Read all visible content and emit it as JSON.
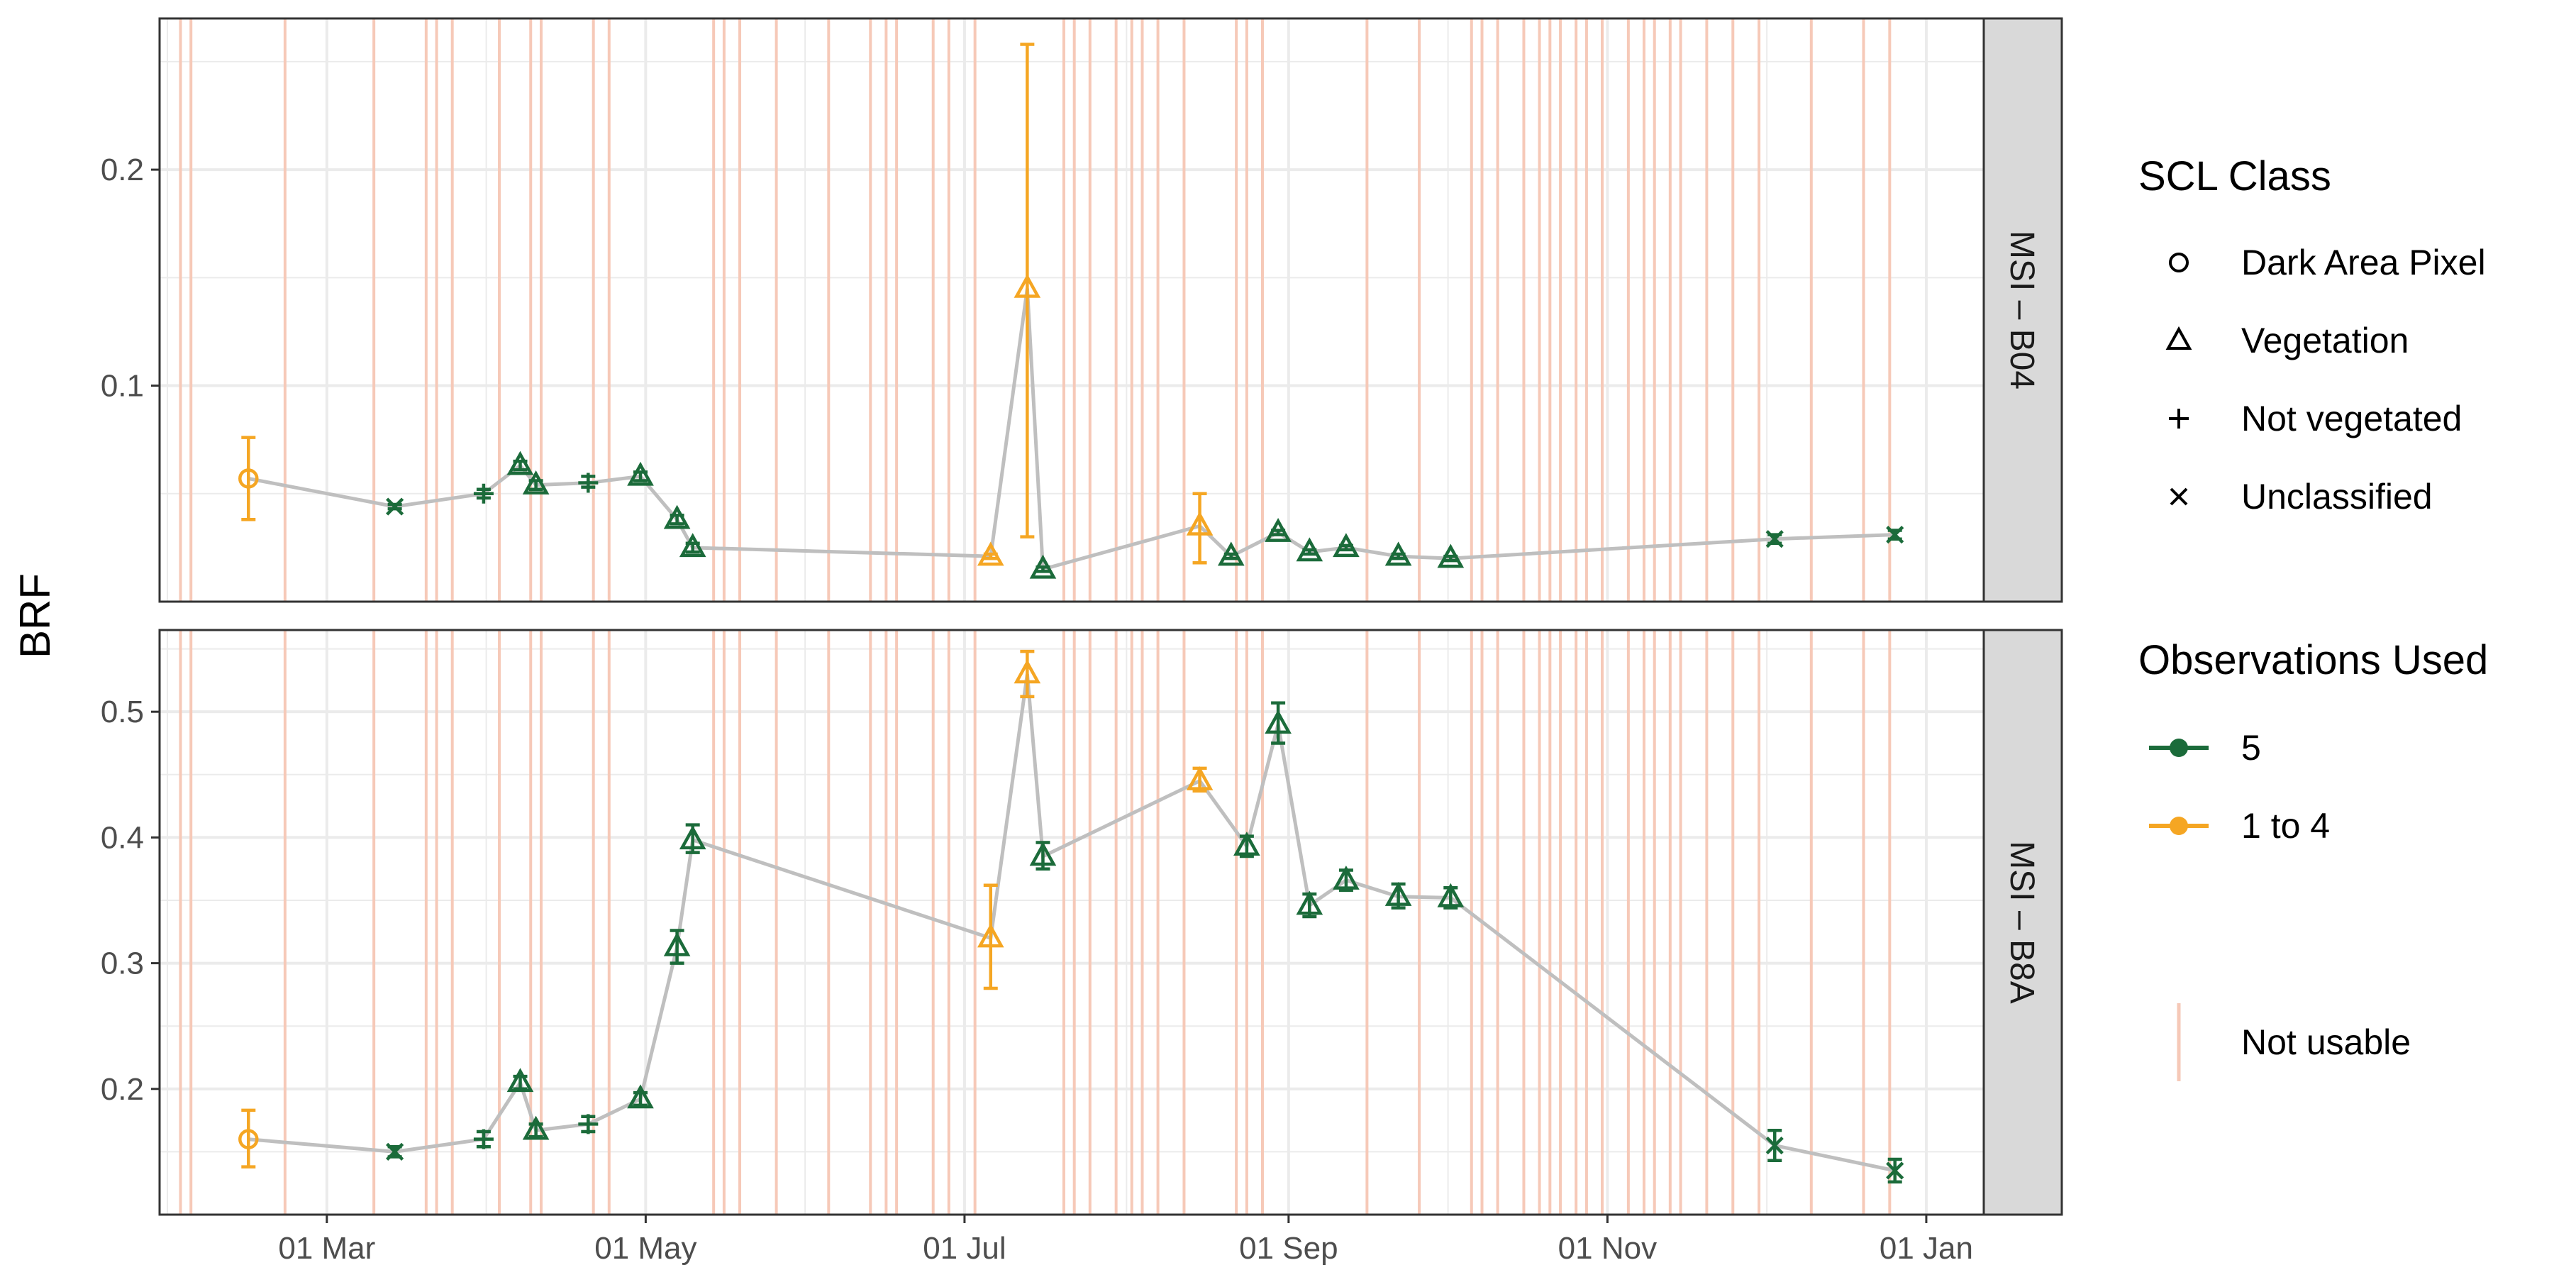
{
  "chart_data": {
    "type": "line",
    "ylabel": "BRF",
    "xlabel": "",
    "x_axis": {
      "type": "date",
      "range": [
        "2021-01-28",
        "2022-01-12"
      ],
      "ticks": [
        {
          "date": "2021-03-01",
          "label": "01 Mar"
        },
        {
          "date": "2021-05-01",
          "label": "01 May"
        },
        {
          "date": "2021-07-01",
          "label": "01 Jul"
        },
        {
          "date": "2021-09-01",
          "label": "01 Sep"
        },
        {
          "date": "2021-11-01",
          "label": "01 Nov"
        },
        {
          "date": "2022-01-01",
          "label": "01 Jan"
        }
      ]
    },
    "not_usable_dates": [
      "2021-02-01",
      "2021-02-03",
      "2021-02-21",
      "2021-03-10",
      "2021-03-20",
      "2021-03-22",
      "2021-03-25",
      "2021-04-03",
      "2021-04-09",
      "2021-04-11",
      "2021-04-21",
      "2021-04-24",
      "2021-05-14",
      "2021-05-16",
      "2021-05-19",
      "2021-05-26",
      "2021-06-05",
      "2021-06-13",
      "2021-06-16",
      "2021-06-18",
      "2021-06-25",
      "2021-06-28",
      "2021-07-03",
      "2021-07-20",
      "2021-07-22",
      "2021-07-25",
      "2021-07-30",
      "2021-08-02",
      "2021-08-04",
      "2021-08-07",
      "2021-08-12",
      "2021-08-22",
      "2021-08-24",
      "2021-08-27",
      "2021-09-16",
      "2021-09-26",
      "2021-10-06",
      "2021-10-08",
      "2021-10-11",
      "2021-10-16",
      "2021-10-19",
      "2021-10-21",
      "2021-10-23",
      "2021-10-26",
      "2021-10-28",
      "2021-10-31",
      "2021-11-05",
      "2021-11-08",
      "2021-11-10",
      "2021-11-13",
      "2021-11-15",
      "2021-11-20",
      "2021-11-25",
      "2021-11-30",
      "2021-12-10",
      "2021-12-20",
      "2021-12-25"
    ],
    "panels": [
      {
        "strip": "MSI – B04",
        "ylim": [
          0.0,
          0.27
        ],
        "yticks": [
          0.1,
          0.2
        ],
        "ytick_labels": [
          "0.1",
          "0.2"
        ],
        "points": [
          {
            "date": "2021-02-14",
            "value": 0.057,
            "low": 0.038,
            "high": 0.076,
            "scl": "dark",
            "obs": "1to4"
          },
          {
            "date": "2021-03-14",
            "value": 0.044,
            "low": 0.043,
            "high": 0.045,
            "scl": "unclassified",
            "obs": "5"
          },
          {
            "date": "2021-03-31",
            "value": 0.05,
            "low": 0.048,
            "high": 0.052,
            "scl": "notveg",
            "obs": "5"
          },
          {
            "date": "2021-04-07",
            "value": 0.063,
            "low": 0.061,
            "high": 0.065,
            "scl": "veg",
            "obs": "5"
          },
          {
            "date": "2021-04-10",
            "value": 0.054,
            "low": 0.052,
            "high": 0.056,
            "scl": "veg",
            "obs": "5"
          },
          {
            "date": "2021-04-20",
            "value": 0.055,
            "low": 0.053,
            "high": 0.058,
            "scl": "notveg",
            "obs": "5"
          },
          {
            "date": "2021-04-30",
            "value": 0.058,
            "low": 0.056,
            "high": 0.06,
            "scl": "veg",
            "obs": "5"
          },
          {
            "date": "2021-05-07",
            "value": 0.038,
            "low": 0.036,
            "high": 0.04,
            "scl": "veg",
            "obs": "5"
          },
          {
            "date": "2021-05-10",
            "value": 0.025,
            "low": 0.023,
            "high": 0.027,
            "scl": "veg",
            "obs": "5"
          },
          {
            "date": "2021-07-06",
            "value": 0.021,
            "low": 0.02,
            "high": 0.022,
            "scl": "veg",
            "obs": "1to4"
          },
          {
            "date": "2021-07-13",
            "value": 0.145,
            "low": 0.03,
            "high": 0.258,
            "scl": "veg",
            "obs": "1to4"
          },
          {
            "date": "2021-07-16",
            "value": 0.015,
            "low": 0.014,
            "high": 0.016,
            "scl": "veg",
            "obs": "5"
          },
          {
            "date": "2021-08-15",
            "value": 0.035,
            "low": 0.018,
            "high": 0.05,
            "scl": "veg",
            "obs": "1to4"
          },
          {
            "date": "2021-08-21",
            "value": 0.021,
            "low": 0.02,
            "high": 0.022,
            "scl": "veg",
            "obs": "5"
          },
          {
            "date": "2021-08-30",
            "value": 0.032,
            "low": 0.031,
            "high": 0.033,
            "scl": "veg",
            "obs": "5"
          },
          {
            "date": "2021-09-05",
            "value": 0.023,
            "low": 0.022,
            "high": 0.024,
            "scl": "veg",
            "obs": "5"
          },
          {
            "date": "2021-09-12",
            "value": 0.025,
            "low": 0.024,
            "high": 0.026,
            "scl": "veg",
            "obs": "5"
          },
          {
            "date": "2021-09-22",
            "value": 0.021,
            "low": 0.02,
            "high": 0.022,
            "scl": "veg",
            "obs": "5"
          },
          {
            "date": "2021-10-02",
            "value": 0.02,
            "low": 0.019,
            "high": 0.021,
            "scl": "veg",
            "obs": "5"
          },
          {
            "date": "2021-12-03",
            "value": 0.029,
            "low": 0.027,
            "high": 0.031,
            "scl": "unclassified",
            "obs": "5"
          },
          {
            "date": "2021-12-26",
            "value": 0.031,
            "low": 0.029,
            "high": 0.033,
            "scl": "unclassified",
            "obs": "5"
          }
        ]
      },
      {
        "strip": "MSI – B8A",
        "ylim": [
          0.1,
          0.565
        ],
        "yticks": [
          0.2,
          0.3,
          0.4,
          0.5
        ],
        "ytick_labels": [
          "0.2",
          "0.3",
          "0.4",
          "0.5"
        ],
        "points": [
          {
            "date": "2021-02-14",
            "value": 0.16,
            "low": 0.138,
            "high": 0.183,
            "scl": "dark",
            "obs": "1to4"
          },
          {
            "date": "2021-03-14",
            "value": 0.15,
            "low": 0.146,
            "high": 0.154,
            "scl": "unclassified",
            "obs": "5"
          },
          {
            "date": "2021-03-31",
            "value": 0.16,
            "low": 0.154,
            "high": 0.166,
            "scl": "notveg",
            "obs": "5"
          },
          {
            "date": "2021-04-07",
            "value": 0.205,
            "low": 0.2,
            "high": 0.21,
            "scl": "veg",
            "obs": "5"
          },
          {
            "date": "2021-04-10",
            "value": 0.167,
            "low": 0.162,
            "high": 0.172,
            "scl": "veg",
            "obs": "5"
          },
          {
            "date": "2021-04-20",
            "value": 0.172,
            "low": 0.166,
            "high": 0.178,
            "scl": "notveg",
            "obs": "5"
          },
          {
            "date": "2021-04-30",
            "value": 0.192,
            "low": 0.187,
            "high": 0.197,
            "scl": "veg",
            "obs": "5"
          },
          {
            "date": "2021-05-07",
            "value": 0.313,
            "low": 0.3,
            "high": 0.326,
            "scl": "veg",
            "obs": "5"
          },
          {
            "date": "2021-05-10",
            "value": 0.398,
            "low": 0.388,
            "high": 0.41,
            "scl": "veg",
            "obs": "5"
          },
          {
            "date": "2021-07-06",
            "value": 0.32,
            "low": 0.28,
            "high": 0.362,
            "scl": "veg",
            "obs": "1to4"
          },
          {
            "date": "2021-07-13",
            "value": 0.53,
            "low": 0.512,
            "high": 0.548,
            "scl": "veg",
            "obs": "1to4"
          },
          {
            "date": "2021-07-16",
            "value": 0.385,
            "low": 0.375,
            "high": 0.396,
            "scl": "veg",
            "obs": "5"
          },
          {
            "date": "2021-08-15",
            "value": 0.445,
            "low": 0.437,
            "high": 0.455,
            "scl": "veg",
            "obs": "1to4"
          },
          {
            "date": "2021-08-24",
            "value": 0.393,
            "low": 0.385,
            "high": 0.401,
            "scl": "veg",
            "obs": "5"
          },
          {
            "date": "2021-08-30",
            "value": 0.49,
            "low": 0.475,
            "high": 0.507,
            "scl": "veg",
            "obs": "5"
          },
          {
            "date": "2021-09-05",
            "value": 0.346,
            "low": 0.337,
            "high": 0.355,
            "scl": "veg",
            "obs": "5"
          },
          {
            "date": "2021-09-12",
            "value": 0.366,
            "low": 0.358,
            "high": 0.374,
            "scl": "veg",
            "obs": "5"
          },
          {
            "date": "2021-09-22",
            "value": 0.353,
            "low": 0.344,
            "high": 0.363,
            "scl": "veg",
            "obs": "5"
          },
          {
            "date": "2021-10-02",
            "value": 0.352,
            "low": 0.344,
            "high": 0.36,
            "scl": "veg",
            "obs": "5"
          },
          {
            "date": "2021-12-03",
            "value": 0.155,
            "low": 0.143,
            "high": 0.167,
            "scl": "unclassified",
            "obs": "5"
          },
          {
            "date": "2021-12-26",
            "value": 0.135,
            "low": 0.126,
            "high": 0.144,
            "scl": "unclassified",
            "obs": "5"
          }
        ]
      }
    ],
    "legend": {
      "placement": "right",
      "scl_title": "SCL Class",
      "scl_items": [
        {
          "key": "dark",
          "label": "Dark Area Pixel",
          "icon": "circle-icon"
        },
        {
          "key": "veg",
          "label": "Vegetation",
          "icon": "triangle-icon"
        },
        {
          "key": "notveg",
          "label": "Not vegetated",
          "icon": "plus-icon"
        },
        {
          "key": "unclassified",
          "label": "Unclassified",
          "icon": "cross-icon"
        }
      ],
      "obs_title": "Observations Used",
      "obs_items": [
        {
          "key": "5",
          "label": "5",
          "color": "#1b6b3a"
        },
        {
          "key": "1to4",
          "label": "1 to 4",
          "color": "#f5a623"
        }
      ],
      "not_usable_label": "Not usable",
      "not_usable_color": "#f6c9b8"
    },
    "line_color": "#bfbfbf",
    "grid": true
  }
}
